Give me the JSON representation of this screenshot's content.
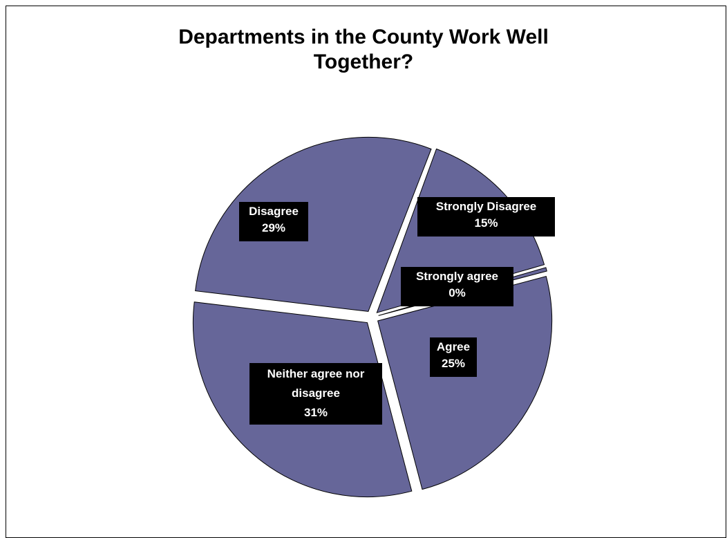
{
  "chart_data": {
    "type": "pie",
    "title_lines": [
      "Departments in the County Work Well",
      "Together?"
    ],
    "slices": [
      {
        "name": "Strongly Disagree",
        "value": 15,
        "label": "15%",
        "color": "#666699"
      },
      {
        "name": "Strongly agree",
        "value": 0,
        "label": "0%",
        "color": "#666699"
      },
      {
        "name": "Agree",
        "value": 25,
        "label": "25%",
        "color": "#666699"
      },
      {
        "name": "Neither agree nor disagree",
        "value": 31,
        "label": "31%",
        "color": "#666699"
      },
      {
        "name": "Disagree",
        "value": 29,
        "label": "29%",
        "color": "#666699"
      }
    ],
    "data_label_style": {
      "background": "#000000",
      "text": "#ffffff"
    }
  }
}
